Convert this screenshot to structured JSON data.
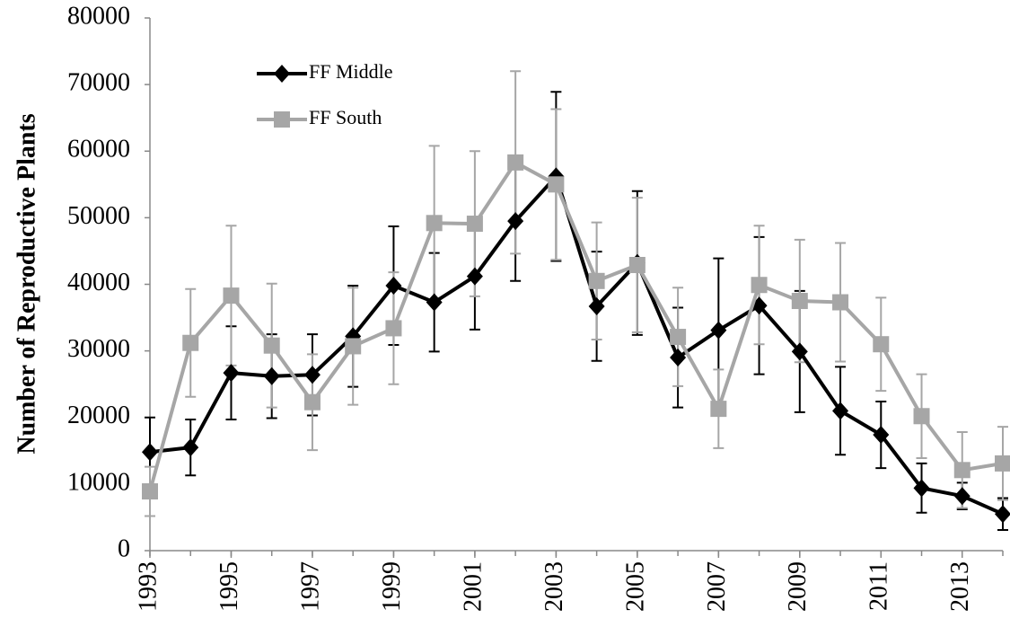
{
  "chart_data": {
    "type": "line",
    "y_label": "Number of Reproductive Plants",
    "x": [
      1993,
      1994,
      1995,
      1996,
      1997,
      1998,
      1999,
      2000,
      2001,
      2002,
      2003,
      2004,
      2005,
      2006,
      2007,
      2008,
      2009,
      2010,
      2011,
      2012,
      2013,
      2014
    ],
    "xlim": [
      1993,
      2014
    ],
    "xticks": [
      1993,
      1995,
      1997,
      1999,
      2001,
      2003,
      2005,
      2007,
      2009,
      2011,
      2013
    ],
    "ylim": [
      0,
      80000
    ],
    "yticks": [
      0,
      10000,
      20000,
      30000,
      40000,
      50000,
      60000,
      70000,
      80000
    ],
    "grid": false,
    "legend": "top-left",
    "series": [
      {
        "name": "FF Middle",
        "color": "#000000",
        "marker": "diamond",
        "values": [
          14800,
          15500,
          26700,
          26200,
          26400,
          32200,
          39800,
          37300,
          41200,
          49500,
          56200,
          36700,
          43200,
          29000,
          33100,
          36800,
          29900,
          21000,
          17400,
          9400,
          8200,
          5500
        ],
        "errors": [
          5200,
          4200,
          7000,
          6300,
          6100,
          7600,
          8900,
          7400,
          8000,
          9000,
          12700,
          8200,
          10800,
          7500,
          10800,
          10300,
          9100,
          6600,
          5000,
          3700,
          2000,
          2400
        ]
      },
      {
        "name": "FF South",
        "color": "#a6a6a6",
        "marker": "square",
        "values": [
          8900,
          31200,
          38300,
          30800,
          22300,
          30700,
          33400,
          49200,
          49100,
          58300,
          55000,
          40500,
          42900,
          32100,
          21300,
          39900,
          37500,
          37300,
          31000,
          20200,
          12100,
          13100
        ],
        "errors": [
          3700,
          8100,
          10500,
          9300,
          7200,
          8800,
          8400,
          11600,
          10900,
          13700,
          11300,
          8800,
          10100,
          7400,
          5900,
          8900,
          9200,
          8900,
          7000,
          6300,
          5700,
          5500
        ]
      }
    ]
  }
}
